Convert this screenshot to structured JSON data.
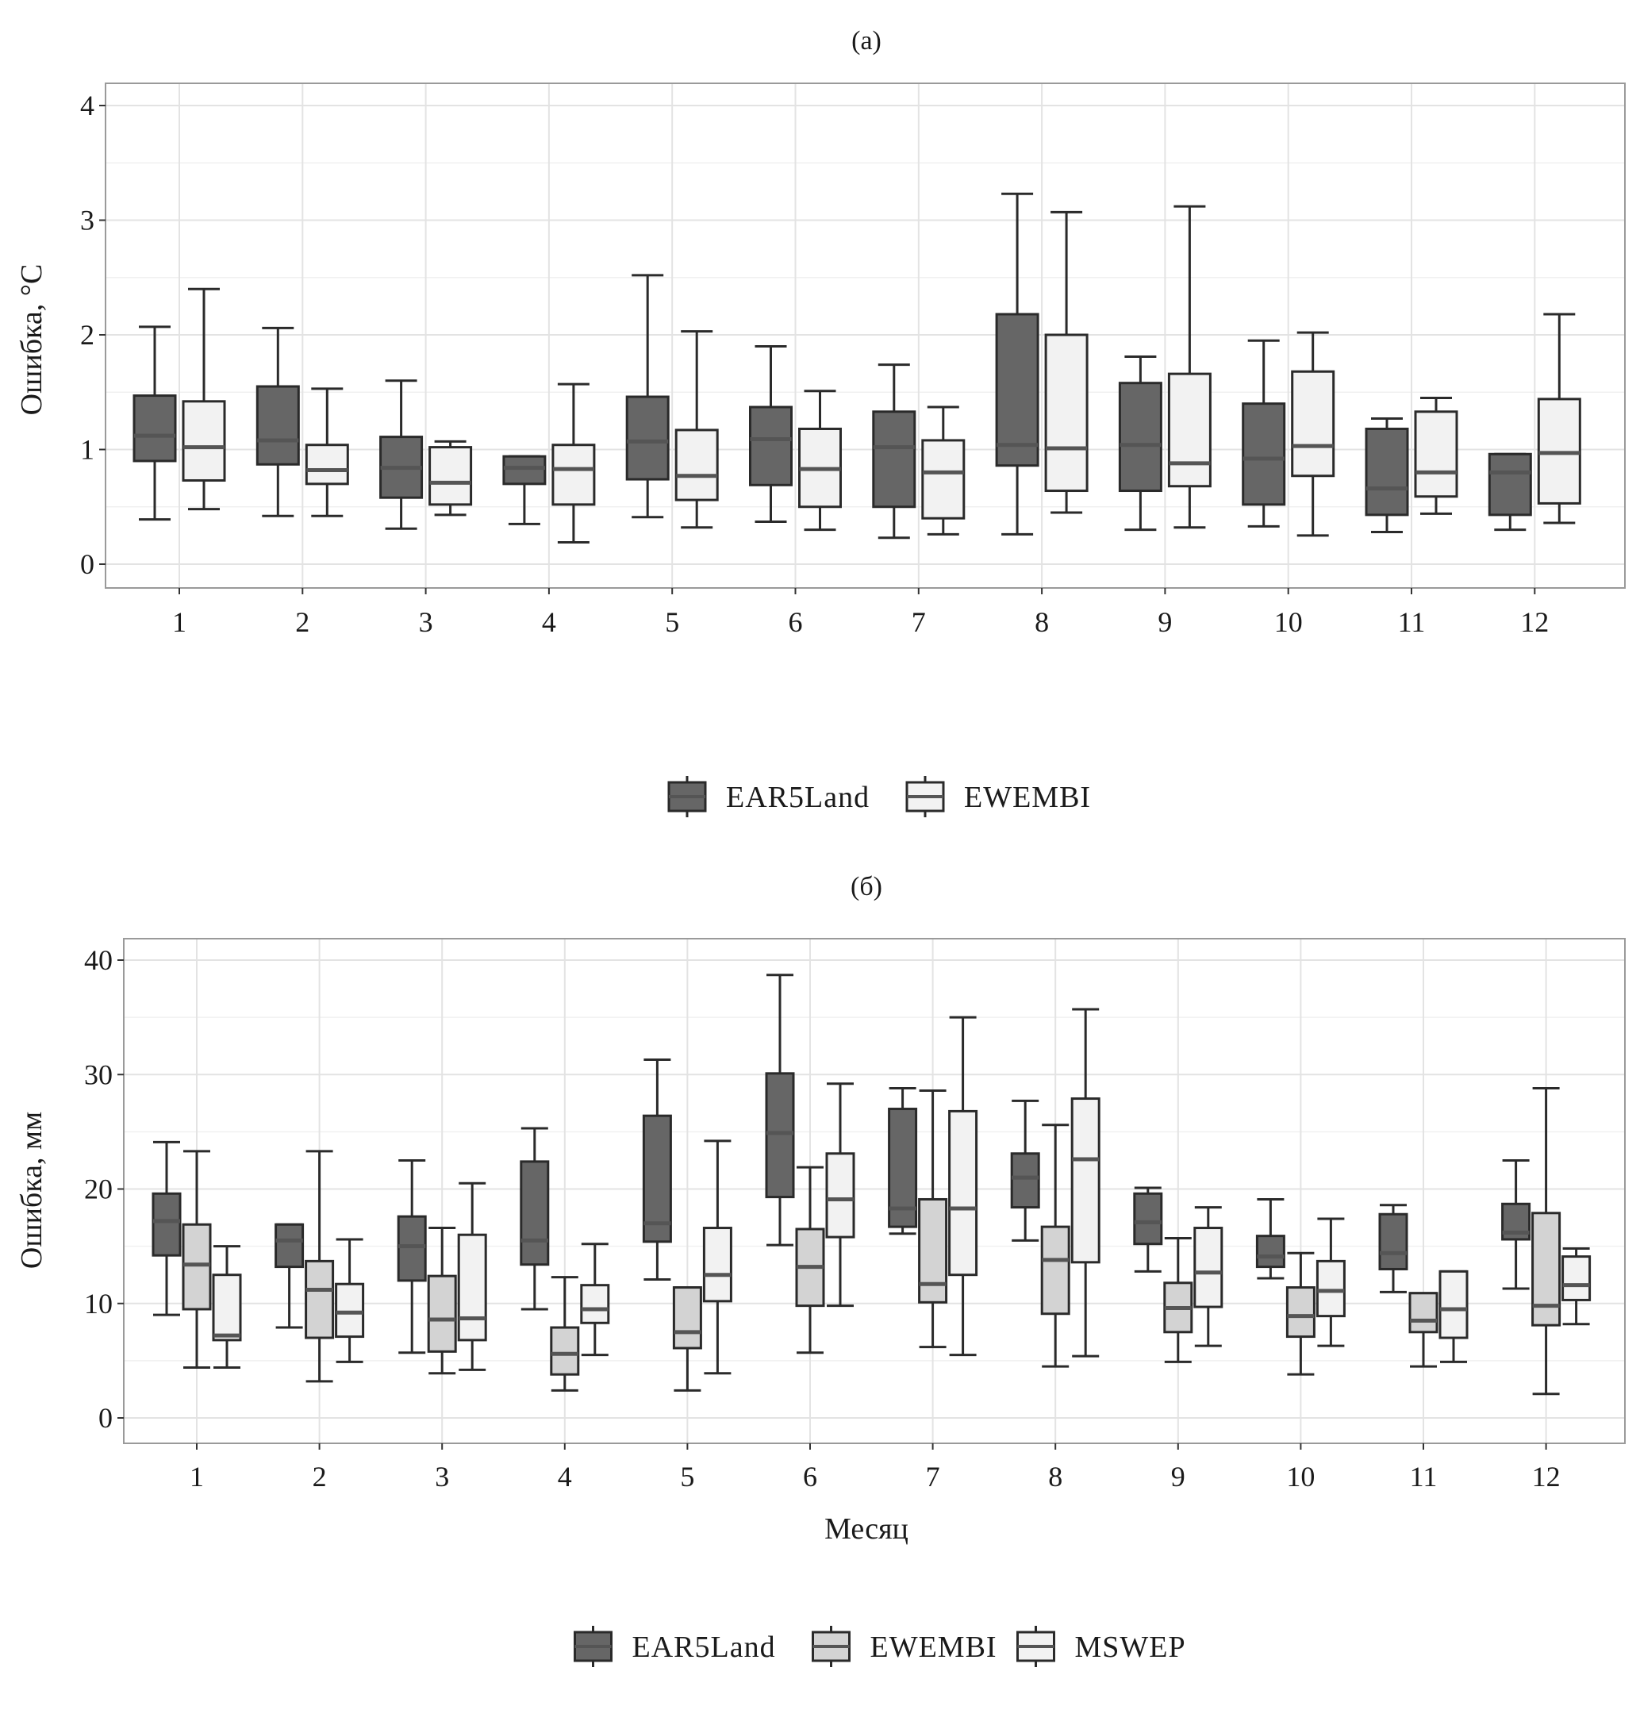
{
  "chart_data": [
    {
      "type": "boxplot",
      "title": "(а)",
      "xlabel": "",
      "ylabel": "Ошибка, °C",
      "categories": [
        "1",
        "2",
        "3",
        "4",
        "5",
        "6",
        "7",
        "8",
        "9",
        "10",
        "11",
        "12"
      ],
      "yticks": [
        "0",
        "1",
        "2",
        "3",
        "4"
      ],
      "ylim": [
        0,
        4
      ],
      "grid": true,
      "legend_position": "bottom",
      "series": [
        {
          "name": "EAR5Land",
          "color": "#666666",
          "min": [
            0.39,
            0.42,
            0.31,
            0.35,
            0.41,
            0.37,
            0.23,
            0.26,
            0.3,
            0.33,
            0.28,
            0.3
          ],
          "q1": [
            0.9,
            0.87,
            0.58,
            0.7,
            0.74,
            0.69,
            0.5,
            0.86,
            0.64,
            0.52,
            0.43,
            0.43
          ],
          "median": [
            1.12,
            1.08,
            0.84,
            0.84,
            1.07,
            1.09,
            1.02,
            1.04,
            1.04,
            0.92,
            0.66,
            0.8
          ],
          "q3": [
            1.47,
            1.55,
            1.11,
            0.94,
            1.46,
            1.37,
            1.33,
            2.18,
            1.58,
            1.4,
            1.18,
            0.96
          ],
          "max": [
            2.07,
            2.06,
            1.6,
            0.94,
            2.52,
            1.9,
            1.74,
            3.23,
            1.81,
            1.95,
            1.27,
            0.96
          ]
        },
        {
          "name": "EWEMBI",
          "color": "#f2f2f2",
          "min": [
            0.48,
            0.42,
            0.43,
            0.19,
            0.32,
            0.3,
            0.26,
            0.45,
            0.32,
            0.25,
            0.44,
            0.36
          ],
          "q1": [
            0.73,
            0.7,
            0.52,
            0.52,
            0.56,
            0.5,
            0.4,
            0.64,
            0.68,
            0.77,
            0.59,
            0.53
          ],
          "median": [
            1.02,
            0.82,
            0.71,
            0.83,
            0.77,
            0.83,
            0.8,
            1.01,
            0.88,
            1.03,
            0.8,
            0.97
          ],
          "q3": [
            1.42,
            1.04,
            1.02,
            1.04,
            1.17,
            1.18,
            1.08,
            2.0,
            1.66,
            1.68,
            1.33,
            1.44
          ],
          "max": [
            2.4,
            1.53,
            1.07,
            1.57,
            2.03,
            1.51,
            1.37,
            3.07,
            3.12,
            2.02,
            1.45,
            2.18
          ]
        }
      ]
    },
    {
      "type": "boxplot",
      "title": "(б)",
      "xlabel": "Месяц",
      "ylabel": "Ошибка, мм",
      "categories": [
        "1",
        "2",
        "3",
        "4",
        "5",
        "6",
        "7",
        "8",
        "9",
        "10",
        "11",
        "12"
      ],
      "yticks": [
        "0",
        "10",
        "20",
        "30",
        "40"
      ],
      "ylim": [
        0,
        40
      ],
      "grid": true,
      "legend_position": "bottom",
      "series": [
        {
          "name": "EAR5Land",
          "color": "#666666",
          "min": [
            9.0,
            7.9,
            5.7,
            9.5,
            12.1,
            15.1,
            16.1,
            15.5,
            12.8,
            12.2,
            11.0,
            11.3
          ],
          "q1": [
            14.2,
            13.2,
            12.0,
            13.4,
            15.4,
            19.3,
            16.7,
            18.4,
            15.2,
            13.2,
            13.0,
            15.6
          ],
          "median": [
            17.2,
            15.5,
            15.0,
            15.5,
            17.0,
            24.9,
            18.3,
            21.0,
            17.1,
            14.1,
            14.4,
            16.2
          ],
          "q3": [
            19.6,
            16.9,
            17.6,
            22.4,
            26.4,
            30.1,
            27.0,
            23.1,
            19.6,
            15.9,
            17.8,
            18.7
          ],
          "max": [
            24.1,
            16.9,
            22.5,
            25.3,
            31.3,
            38.7,
            28.8,
            27.7,
            20.1,
            19.1,
            18.6,
            22.5
          ]
        },
        {
          "name": "EWEMBI",
          "color": "#d3d3d3",
          "min": [
            4.4,
            3.2,
            3.9,
            2.4,
            2.4,
            5.7,
            6.2,
            4.5,
            4.9,
            3.8,
            4.5,
            2.1
          ],
          "q1": [
            9.5,
            7.0,
            5.8,
            3.8,
            6.1,
            9.8,
            10.1,
            9.1,
            7.5,
            7.1,
            7.5,
            8.1
          ],
          "median": [
            13.4,
            11.2,
            8.6,
            5.6,
            7.5,
            13.2,
            11.7,
            13.8,
            9.6,
            8.9,
            8.5,
            9.8
          ],
          "q3": [
            16.9,
            13.7,
            12.4,
            7.9,
            11.4,
            16.5,
            19.1,
            16.7,
            11.8,
            11.4,
            10.9,
            17.9
          ],
          "max": [
            23.3,
            23.3,
            16.6,
            12.3,
            11.4,
            21.9,
            28.6,
            25.6,
            15.7,
            14.4,
            10.9,
            28.8
          ]
        },
        {
          "name": "MSWEP",
          "color": "#f2f2f2",
          "min": [
            4.4,
            4.9,
            4.2,
            5.5,
            3.9,
            9.8,
            5.5,
            5.4,
            6.3,
            6.3,
            4.9,
            8.2
          ],
          "q1": [
            6.8,
            7.1,
            6.8,
            8.3,
            10.2,
            15.8,
            12.5,
            13.6,
            9.7,
            8.9,
            7.0,
            10.3
          ],
          "median": [
            7.2,
            9.2,
            8.7,
            9.5,
            12.5,
            19.1,
            18.3,
            22.6,
            12.7,
            11.1,
            9.5,
            11.6
          ],
          "q3": [
            12.5,
            11.7,
            16.0,
            11.6,
            16.6,
            23.1,
            26.8,
            27.9,
            16.6,
            13.7,
            12.8,
            14.1
          ],
          "max": [
            15.0,
            15.6,
            20.5,
            15.2,
            24.2,
            29.2,
            35.0,
            35.7,
            18.4,
            17.4,
            12.8,
            14.8
          ]
        }
      ]
    }
  ]
}
